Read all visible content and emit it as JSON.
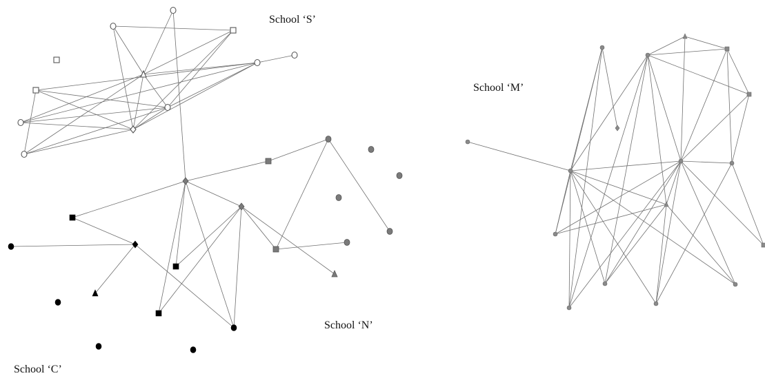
{
  "labels": {
    "school_s": "School ‘S’",
    "school_m": "School ‘M’",
    "school_n": "School ‘N’",
    "school_c": "School ‘C’"
  },
  "colors": {
    "edge": "#6f6f6f",
    "school_s_fill": "#ffffff",
    "school_s_stroke": "#555555",
    "school_n_fill": "#7a7a7a",
    "school_m_fill": "#8a8a8a",
    "school_c_fill": "#000000"
  },
  "network": {
    "nodes": [
      {
        "id": "s1",
        "school": "S",
        "shape": "circle"
      },
      {
        "id": "s2",
        "school": "S",
        "shape": "circle"
      },
      {
        "id": "s3",
        "school": "S",
        "shape": "square"
      },
      {
        "id": "s4",
        "school": "S",
        "shape": "square"
      },
      {
        "id": "s5",
        "school": "S",
        "shape": "triangle"
      },
      {
        "id": "s6",
        "school": "S",
        "shape": "circle"
      },
      {
        "id": "s7",
        "school": "S",
        "shape": "circle"
      },
      {
        "id": "s8",
        "school": "S",
        "shape": "circle"
      },
      {
        "id": "s9",
        "school": "S",
        "shape": "square"
      },
      {
        "id": "s10",
        "school": "S",
        "shape": "circle"
      },
      {
        "id": "s11",
        "school": "S",
        "shape": "diamond"
      },
      {
        "id": "s12",
        "school": "S",
        "shape": "circle"
      },
      {
        "id": "n1",
        "school": "N",
        "shape": "square"
      },
      {
        "id": "n2",
        "school": "N",
        "shape": "circle"
      },
      {
        "id": "n3",
        "school": "N",
        "shape": "circle"
      },
      {
        "id": "n4",
        "school": "N",
        "shape": "circle"
      },
      {
        "id": "n5",
        "school": "N",
        "shape": "diamond"
      },
      {
        "id": "n6",
        "school": "N",
        "shape": "circle"
      },
      {
        "id": "n7",
        "school": "N",
        "shape": "diamond"
      },
      {
        "id": "n8",
        "school": "N",
        "shape": "circle"
      },
      {
        "id": "n9",
        "school": "N",
        "shape": "square"
      },
      {
        "id": "n10",
        "school": "N",
        "shape": "circle"
      },
      {
        "id": "n11",
        "school": "N",
        "shape": "triangle"
      },
      {
        "id": "c1",
        "school": "C",
        "shape": "square"
      },
      {
        "id": "c2",
        "school": "C",
        "shape": "circle"
      },
      {
        "id": "c3",
        "school": "C",
        "shape": "diamond"
      },
      {
        "id": "c4",
        "school": "C",
        "shape": "square"
      },
      {
        "id": "c5",
        "school": "C",
        "shape": "circle"
      },
      {
        "id": "c6",
        "school": "C",
        "shape": "triangle"
      },
      {
        "id": "c7",
        "school": "C",
        "shape": "square"
      },
      {
        "id": "c8",
        "school": "C",
        "shape": "circle"
      },
      {
        "id": "c9",
        "school": "C",
        "shape": "circle"
      },
      {
        "id": "c10",
        "school": "C",
        "shape": "circle"
      },
      {
        "id": "m1",
        "school": "M",
        "shape": "circle"
      },
      {
        "id": "m2",
        "school": "M",
        "shape": "circle"
      },
      {
        "id": "m3",
        "school": "M",
        "shape": "triangle"
      },
      {
        "id": "m4",
        "school": "M",
        "shape": "square"
      },
      {
        "id": "m5",
        "school": "M",
        "shape": "square"
      },
      {
        "id": "m6",
        "school": "M",
        "shape": "circle"
      },
      {
        "id": "m7",
        "school": "M",
        "shape": "circle"
      },
      {
        "id": "m8",
        "school": "M",
        "shape": "circle"
      },
      {
        "id": "m9",
        "school": "M",
        "shape": "circle"
      },
      {
        "id": "m10",
        "school": "M",
        "shape": "diamond"
      },
      {
        "id": "m11",
        "school": "M",
        "shape": "circle"
      },
      {
        "id": "m12",
        "school": "M",
        "shape": "triangle"
      },
      {
        "id": "m13",
        "school": "M",
        "shape": "circle"
      },
      {
        "id": "m14",
        "school": "M",
        "shape": "circle"
      },
      {
        "id": "m15",
        "school": "M",
        "shape": "circle"
      },
      {
        "id": "m16",
        "school": "M",
        "shape": "circle"
      },
      {
        "id": "m17",
        "school": "M",
        "shape": "square"
      }
    ],
    "edges": [
      [
        "s1",
        "s5"
      ],
      [
        "s1",
        "s11"
      ],
      [
        "s1",
        "s4"
      ],
      [
        "s2",
        "s5"
      ],
      [
        "s5",
        "s4"
      ],
      [
        "s5",
        "s7"
      ],
      [
        "s5",
        "s11"
      ],
      [
        "s5",
        "s8"
      ],
      [
        "s5",
        "s10"
      ],
      [
        "s5",
        "s12"
      ],
      [
        "s4",
        "s8"
      ],
      [
        "s4",
        "s11"
      ],
      [
        "s6",
        "s7"
      ],
      [
        "s7",
        "s8"
      ],
      [
        "s7",
        "s9"
      ],
      [
        "s7",
        "s11"
      ],
      [
        "s7",
        "s10"
      ],
      [
        "s8",
        "s9"
      ],
      [
        "s8",
        "s10"
      ],
      [
        "s8",
        "s11"
      ],
      [
        "s8",
        "s12"
      ],
      [
        "s9",
        "s12"
      ],
      [
        "s9",
        "s11"
      ],
      [
        "s10",
        "s11"
      ],
      [
        "s11",
        "s12"
      ],
      [
        "s2",
        "n5"
      ],
      [
        "n5",
        "n1"
      ],
      [
        "n1",
        "n2"
      ],
      [
        "n2",
        "n4"
      ],
      [
        "n2",
        "n9"
      ],
      [
        "n9",
        "n6"
      ],
      [
        "n7",
        "n5"
      ],
      [
        "n7",
        "n9"
      ],
      [
        "n7",
        "n11"
      ],
      [
        "n7",
        "c4"
      ],
      [
        "n7",
        "c7"
      ],
      [
        "n7",
        "c8"
      ],
      [
        "n5",
        "c4"
      ],
      [
        "n5",
        "c7"
      ],
      [
        "n5",
        "c1"
      ],
      [
        "n5",
        "c8"
      ],
      [
        "c1",
        "c3"
      ],
      [
        "c3",
        "c2"
      ],
      [
        "c3",
        "c6"
      ],
      [
        "c3",
        "c8"
      ],
      [
        "m1",
        "m6"
      ],
      [
        "m1",
        "m10"
      ],
      [
        "m1",
        "m11"
      ],
      [
        "m1",
        "m15"
      ],
      [
        "m2",
        "m3"
      ],
      [
        "m2",
        "m4"
      ],
      [
        "m2",
        "m5"
      ],
      [
        "m2",
        "m6"
      ],
      [
        "m2",
        "m7"
      ],
      [
        "m2",
        "m15"
      ],
      [
        "m2",
        "m13"
      ],
      [
        "m2",
        "m12"
      ],
      [
        "m3",
        "m4"
      ],
      [
        "m3",
        "m7"
      ],
      [
        "m4",
        "m5"
      ],
      [
        "m4",
        "m7"
      ],
      [
        "m4",
        "m8"
      ],
      [
        "m5",
        "m7"
      ],
      [
        "m5",
        "m8"
      ],
      [
        "m6",
        "m7"
      ],
      [
        "m6",
        "m11"
      ],
      [
        "m6",
        "m12"
      ],
      [
        "m6",
        "m14"
      ],
      [
        "m6",
        "m16"
      ],
      [
        "m6",
        "m13"
      ],
      [
        "m7",
        "m8"
      ],
      [
        "m7",
        "m11"
      ],
      [
        "m7",
        "m12"
      ],
      [
        "m7",
        "m13"
      ],
      [
        "m7",
        "m14"
      ],
      [
        "m7",
        "m15"
      ],
      [
        "m7",
        "m16"
      ],
      [
        "m7",
        "m17"
      ],
      [
        "m8",
        "m17"
      ],
      [
        "m8",
        "m14"
      ],
      [
        "m11",
        "m12"
      ],
      [
        "m12",
        "m13"
      ],
      [
        "m12",
        "m14"
      ],
      [
        "m12",
        "m16"
      ],
      [
        "m6",
        "m9"
      ],
      [
        "m6",
        "m15"
      ]
    ]
  }
}
